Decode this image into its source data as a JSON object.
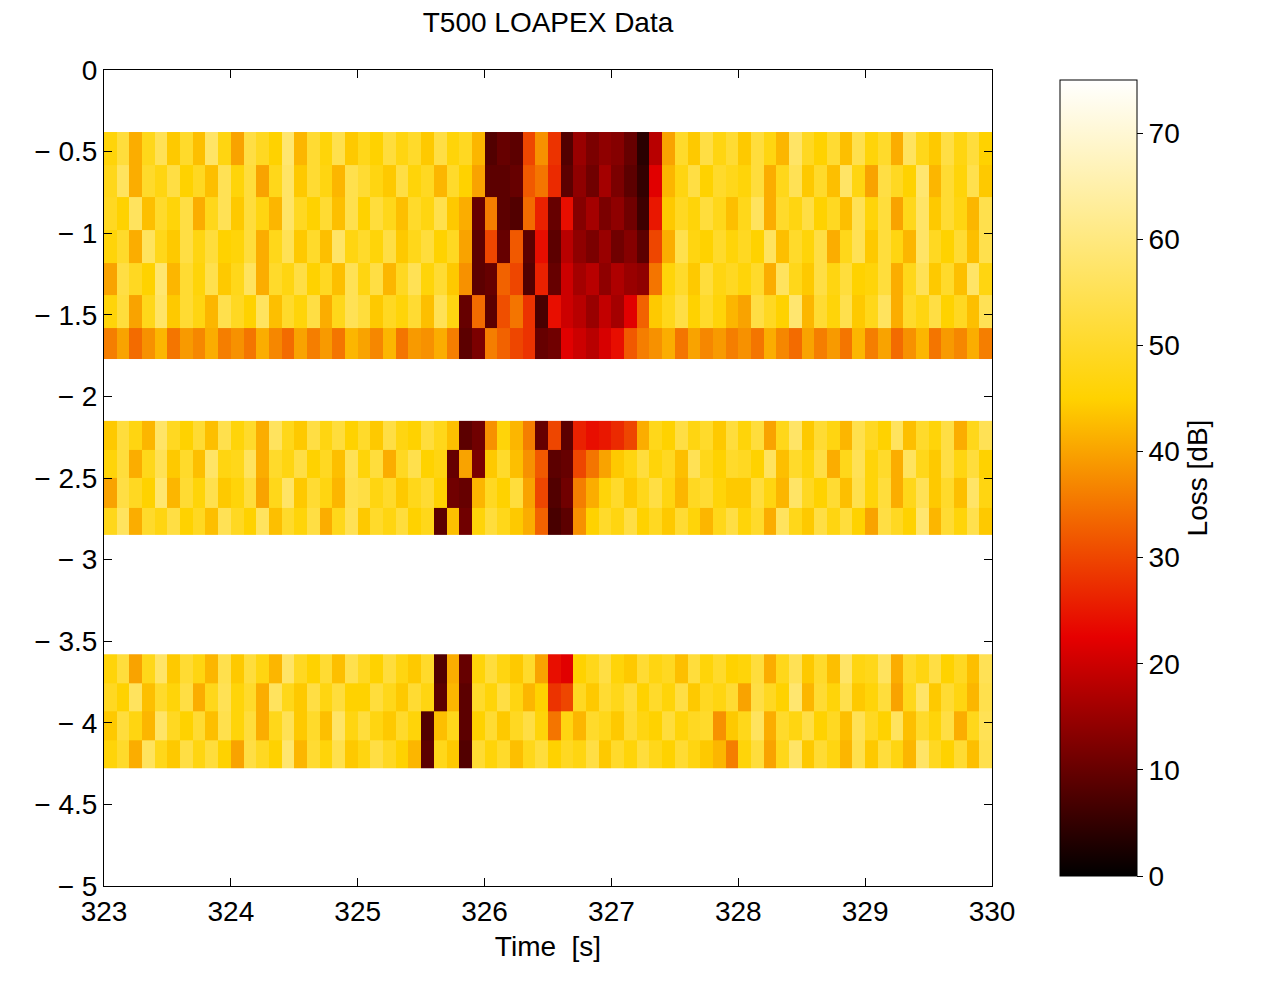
{
  "chart_data": {
    "type": "heatmap",
    "title": "T500 LOAPEX Data",
    "x_label": "Time  [s]",
    "colorbar_label": "Loss [dB]",
    "color": "Hot",
    "xlim": [
      323,
      330
    ],
    "ylim": [
      -5,
      0
    ],
    "xticks": [
      323,
      324,
      325,
      326,
      327,
      328,
      329,
      330
    ],
    "yticks": [
      {
        "value": -5,
        "label": "− 5"
      },
      {
        "value": -4.5,
        "label": "− 4.5"
      },
      {
        "value": -4,
        "label": "− 4"
      },
      {
        "value": -3.5,
        "label": "− 3.5"
      },
      {
        "value": -3,
        "label": "− 3"
      },
      {
        "value": -2.5,
        "label": "− 2.5"
      },
      {
        "value": -2,
        "label": "− 2"
      },
      {
        "value": -1.5,
        "label": "− 1.5"
      },
      {
        "value": -1,
        "label": "− 1"
      },
      {
        "value": -0.5,
        "label": "− 0.5"
      },
      0
    ],
    "zlim": [
      0,
      75
    ],
    "zticks": [
      0,
      10,
      20,
      30,
      40,
      50,
      60,
      70
    ],
    "x": [
      323,
      323.1,
      323.2,
      323.3,
      323.4,
      323.5,
      323.6,
      323.7,
      323.8,
      323.9,
      324,
      324.1,
      324.2,
      324.3,
      324.4,
      324.5,
      324.6,
      324.7,
      324.8,
      324.9,
      325,
      325.1,
      325.2,
      325.3,
      325.4,
      325.5,
      325.6,
      325.7,
      325.8,
      325.9,
      326,
      326.1,
      326.2,
      326.3,
      326.4,
      326.5,
      326.6,
      326.7,
      326.8,
      326.9,
      327,
      327.1,
      327.2,
      327.3,
      327.4,
      327.5,
      327.6,
      327.7,
      327.8,
      327.9,
      328,
      328.1,
      328.2,
      328.3,
      328.4,
      328.5,
      328.6,
      328.7,
      328.8,
      328.9,
      329,
      329.1,
      329.2,
      329.3,
      329.4,
      329.5,
      329.6,
      329.7,
      329.8,
      329.9,
      330
    ],
    "bands": [
      {
        "y": [
          -4.28,
          -4.11,
          -3.93,
          -3.76,
          -3.58
        ],
        "z": [
          [
            46,
            50,
            41,
            56,
            48,
            44,
            53,
            47,
            52,
            45,
            40,
            53,
            49,
            45,
            58,
            42,
            51,
            46,
            54,
            44,
            47,
            53,
            49,
            45,
            42,
            9,
            48,
            44,
            8,
            51,
            46,
            50,
            43,
            48,
            52,
            45,
            49,
            47,
            53,
            44,
            50,
            46,
            52,
            48,
            45,
            51,
            47,
            44,
            42,
            36,
            46,
            52,
            40,
            48,
            57,
            44,
            51,
            47,
            42,
            54,
            44,
            52,
            47,
            42,
            57,
            49,
            45,
            51,
            43,
            54
          ],
          [
            44,
            52,
            47,
            42,
            57,
            49,
            45,
            51,
            43,
            54,
            46,
            52,
            41,
            48,
            55,
            44,
            50,
            43,
            57,
            47,
            52,
            47,
            44,
            50,
            46,
            8,
            43,
            48,
            9,
            45,
            51,
            44,
            49,
            53,
            46,
            35,
            47,
            42,
            50,
            48,
            44,
            51,
            47,
            45,
            52,
            46,
            49,
            50,
            38,
            44,
            48,
            56,
            41,
            50,
            47,
            53,
            45,
            49,
            43,
            55,
            49,
            45,
            56,
            43,
            50,
            46,
            53,
            41,
            48,
            55
          ],
          [
            49,
            45,
            56,
            43,
            50,
            46,
            53,
            41,
            48,
            55,
            46,
            50,
            41,
            56,
            48,
            44,
            53,
            47,
            52,
            45,
            45,
            52,
            48,
            44,
            51,
            47,
            9,
            42,
            9,
            50,
            46,
            53,
            47,
            42,
            45,
            28,
            30,
            49,
            44,
            51,
            48,
            52,
            45,
            50,
            46,
            53,
            44,
            49,
            47,
            51,
            40,
            53,
            49,
            45,
            58,
            42,
            51,
            46,
            54,
            44,
            46,
            52,
            40,
            48,
            57,
            44,
            51,
            47,
            42,
            54
          ],
          [
            46,
            52,
            40,
            48,
            57,
            44,
            51,
            47,
            42,
            54,
            44,
            52,
            47,
            42,
            57,
            49,
            45,
            51,
            43,
            54,
            49,
            45,
            52,
            47,
            44,
            50,
            8,
            41,
            10,
            46,
            52,
            47,
            44,
            50,
            40,
            24,
            22,
            45,
            48,
            53,
            46,
            44,
            51,
            47,
            49,
            43,
            52,
            46,
            50,
            45,
            46,
            52,
            41,
            48,
            55,
            44,
            50,
            43,
            57,
            47,
            48,
            56,
            41,
            50,
            47,
            53,
            45,
            49,
            43,
            55
          ]
        ]
      },
      {
        "y": [
          -2.85,
          -2.68,
          -2.5,
          -2.33,
          -2.15
        ],
        "z": [
          [
            48,
            56,
            41,
            50,
            47,
            53,
            45,
            49,
            43,
            55,
            49,
            45,
            56,
            43,
            50,
            46,
            53,
            41,
            48,
            55,
            44,
            50,
            47,
            52,
            45,
            48,
            9,
            43,
            11,
            46,
            52,
            48,
            44,
            41,
            33,
            7,
            9,
            38,
            45,
            50,
            47,
            53,
            45,
            49,
            44,
            51,
            46,
            42,
            48,
            53,
            46,
            50,
            41,
            56,
            48,
            44,
            53,
            47,
            52,
            45,
            40,
            53,
            49,
            45,
            58,
            42,
            51,
            46,
            54,
            44
          ],
          [
            40,
            53,
            49,
            45,
            58,
            42,
            51,
            46,
            54,
            44,
            46,
            52,
            40,
            48,
            57,
            44,
            51,
            47,
            42,
            54,
            53,
            47,
            50,
            44,
            48,
            51,
            45,
            11,
            10,
            42,
            49,
            45,
            52,
            40,
            30,
            8,
            11,
            36,
            41,
            46,
            50,
            44,
            48,
            53,
            47,
            42,
            49,
            51,
            46,
            44,
            44,
            52,
            47,
            42,
            57,
            49,
            45,
            51,
            43,
            54,
            46,
            52,
            41,
            48,
            55,
            44,
            50,
            43,
            57,
            47
          ],
          [
            46,
            52,
            41,
            48,
            55,
            44,
            50,
            43,
            57,
            47,
            48,
            56,
            41,
            50,
            47,
            53,
            45,
            49,
            43,
            55,
            46,
            52,
            41,
            49,
            54,
            45,
            47,
            10,
            40,
            12,
            44,
            50,
            43,
            38,
            32,
            9,
            10,
            30,
            35,
            40,
            44,
            47,
            52,
            46,
            49,
            43,
            55,
            48,
            45,
            50,
            49,
            45,
            56,
            43,
            50,
            46,
            53,
            41,
            48,
            55,
            46,
            50,
            41,
            56,
            48,
            44,
            53,
            47,
            52,
            45
          ],
          [
            44,
            52,
            47,
            42,
            57,
            49,
            45,
            51,
            43,
            54,
            46,
            50,
            41,
            56,
            48,
            44,
            53,
            47,
            52,
            45,
            50,
            44,
            53,
            47,
            45,
            52,
            48,
            43,
            9,
            11,
            38,
            46,
            42,
            36,
            10,
            30,
            9,
            26,
            24,
            25,
            27,
            30,
            41,
            48,
            45,
            53,
            47,
            50,
            44,
            52,
            46,
            52,
            40,
            48,
            57,
            44,
            51,
            47,
            42,
            54,
            49,
            45,
            56,
            43,
            50,
            46,
            53,
            41,
            48,
            55
          ]
        ]
      },
      {
        "y": [
          -1.77,
          -1.58,
          -1.38,
          -1.18,
          -0.98,
          -0.78,
          -0.58,
          -0.38
        ],
        "z": [
          [
            36,
            40,
            34,
            38,
            42,
            35,
            39,
            37,
            41,
            36,
            38,
            35,
            41,
            37,
            34,
            40,
            36,
            39,
            35,
            42,
            40,
            37,
            42,
            35,
            39,
            38,
            41,
            36,
            9,
            12,
            36,
            33,
            30,
            28,
            10,
            11,
            22,
            20,
            18,
            21,
            24,
            32,
            36,
            38,
            41,
            35,
            40,
            37,
            39,
            36,
            38,
            35,
            41,
            37,
            34,
            40,
            36,
            39,
            35,
            42,
            36,
            40,
            34,
            38,
            42,
            35,
            39,
            37,
            41,
            36
          ],
          [
            46,
            52,
            40,
            48,
            57,
            44,
            51,
            47,
            42,
            54,
            49,
            45,
            56,
            43,
            50,
            46,
            53,
            41,
            48,
            55,
            52,
            44,
            49,
            46,
            51,
            43,
            55,
            47,
            10,
            34,
            9,
            31,
            35,
            28,
            7,
            24,
            20,
            18,
            15,
            19,
            16,
            22,
            33,
            44,
            48,
            53,
            45,
            50,
            46,
            42,
            40,
            53,
            49,
            45,
            58,
            42,
            51,
            46,
            54,
            44,
            48,
            56,
            41,
            50,
            47,
            53,
            45,
            49,
            43,
            55
          ],
          [
            40,
            53,
            49,
            45,
            58,
            42,
            51,
            46,
            54,
            44,
            48,
            56,
            41,
            50,
            47,
            53,
            45,
            49,
            43,
            55,
            47,
            53,
            42,
            49,
            55,
            46,
            51,
            44,
            38,
            9,
            10,
            33,
            30,
            8,
            26,
            10,
            20,
            16,
            18,
            14,
            17,
            15,
            14,
            35,
            46,
            50,
            44,
            52,
            47,
            49,
            46,
            50,
            41,
            56,
            48,
            44,
            53,
            47,
            52,
            45,
            46,
            52,
            41,
            48,
            55,
            44,
            50,
            43,
            57,
            47
          ],
          [
            46,
            50,
            41,
            56,
            48,
            44,
            53,
            47,
            52,
            45,
            46,
            52,
            41,
            48,
            55,
            44,
            50,
            43,
            57,
            47,
            50,
            46,
            53,
            44,
            48,
            52,
            45,
            49,
            40,
            9,
            30,
            10,
            32,
            9,
            24,
            9,
            18,
            14,
            12,
            15,
            11,
            13,
            9,
            30,
            41,
            54,
            47,
            45,
            50,
            46,
            49,
            45,
            56,
            43,
            50,
            46,
            53,
            41,
            48,
            55,
            44,
            52,
            47,
            42,
            57,
            49,
            45,
            51,
            43,
            54
          ],
          [
            49,
            45,
            56,
            43,
            50,
            46,
            53,
            41,
            48,
            55,
            44,
            52,
            47,
            42,
            57,
            49,
            45,
            51,
            43,
            54,
            45,
            52,
            48,
            43,
            50,
            47,
            54,
            44,
            41,
            10,
            36,
            9,
            8,
            34,
            26,
            10,
            24,
            13,
            16,
            12,
            14,
            11,
            6,
            25,
            44,
            49,
            46,
            52,
            48,
            43,
            48,
            56,
            41,
            50,
            47,
            53,
            45,
            49,
            43,
            55,
            46,
            52,
            40,
            48,
            57,
            44,
            51,
            47,
            42,
            54
          ],
          [
            48,
            56,
            41,
            50,
            47,
            53,
            45,
            49,
            43,
            55,
            46,
            52,
            40,
            48,
            57,
            44,
            51,
            47,
            42,
            54,
            51,
            47,
            44,
            53,
            46,
            49,
            42,
            50,
            45,
            40,
            9,
            9,
            10,
            32,
            35,
            27,
            9,
            14,
            11,
            16,
            12,
            9,
            5,
            22,
            42,
            47,
            53,
            45,
            50,
            48,
            46,
            52,
            41,
            48,
            55,
            44,
            50,
            43,
            57,
            47,
            40,
            53,
            49,
            45,
            58,
            42,
            51,
            46,
            54,
            44
          ],
          [
            46,
            52,
            41,
            48,
            55,
            44,
            50,
            43,
            57,
            47,
            40,
            53,
            49,
            45,
            58,
            42,
            51,
            46,
            54,
            44,
            48,
            45,
            52,
            47,
            50,
            44,
            53,
            46,
            49,
            42,
            8,
            10,
            9,
            30,
            38,
            28,
            8,
            15,
            12,
            14,
            13,
            10,
            4,
            18,
            40,
            50,
            44,
            53,
            47,
            51,
            44,
            52,
            47,
            42,
            57,
            49,
            45,
            51,
            43,
            54,
            46,
            50,
            41,
            56,
            48,
            44,
            53,
            47,
            52,
            45
          ]
        ]
      }
    ]
  }
}
